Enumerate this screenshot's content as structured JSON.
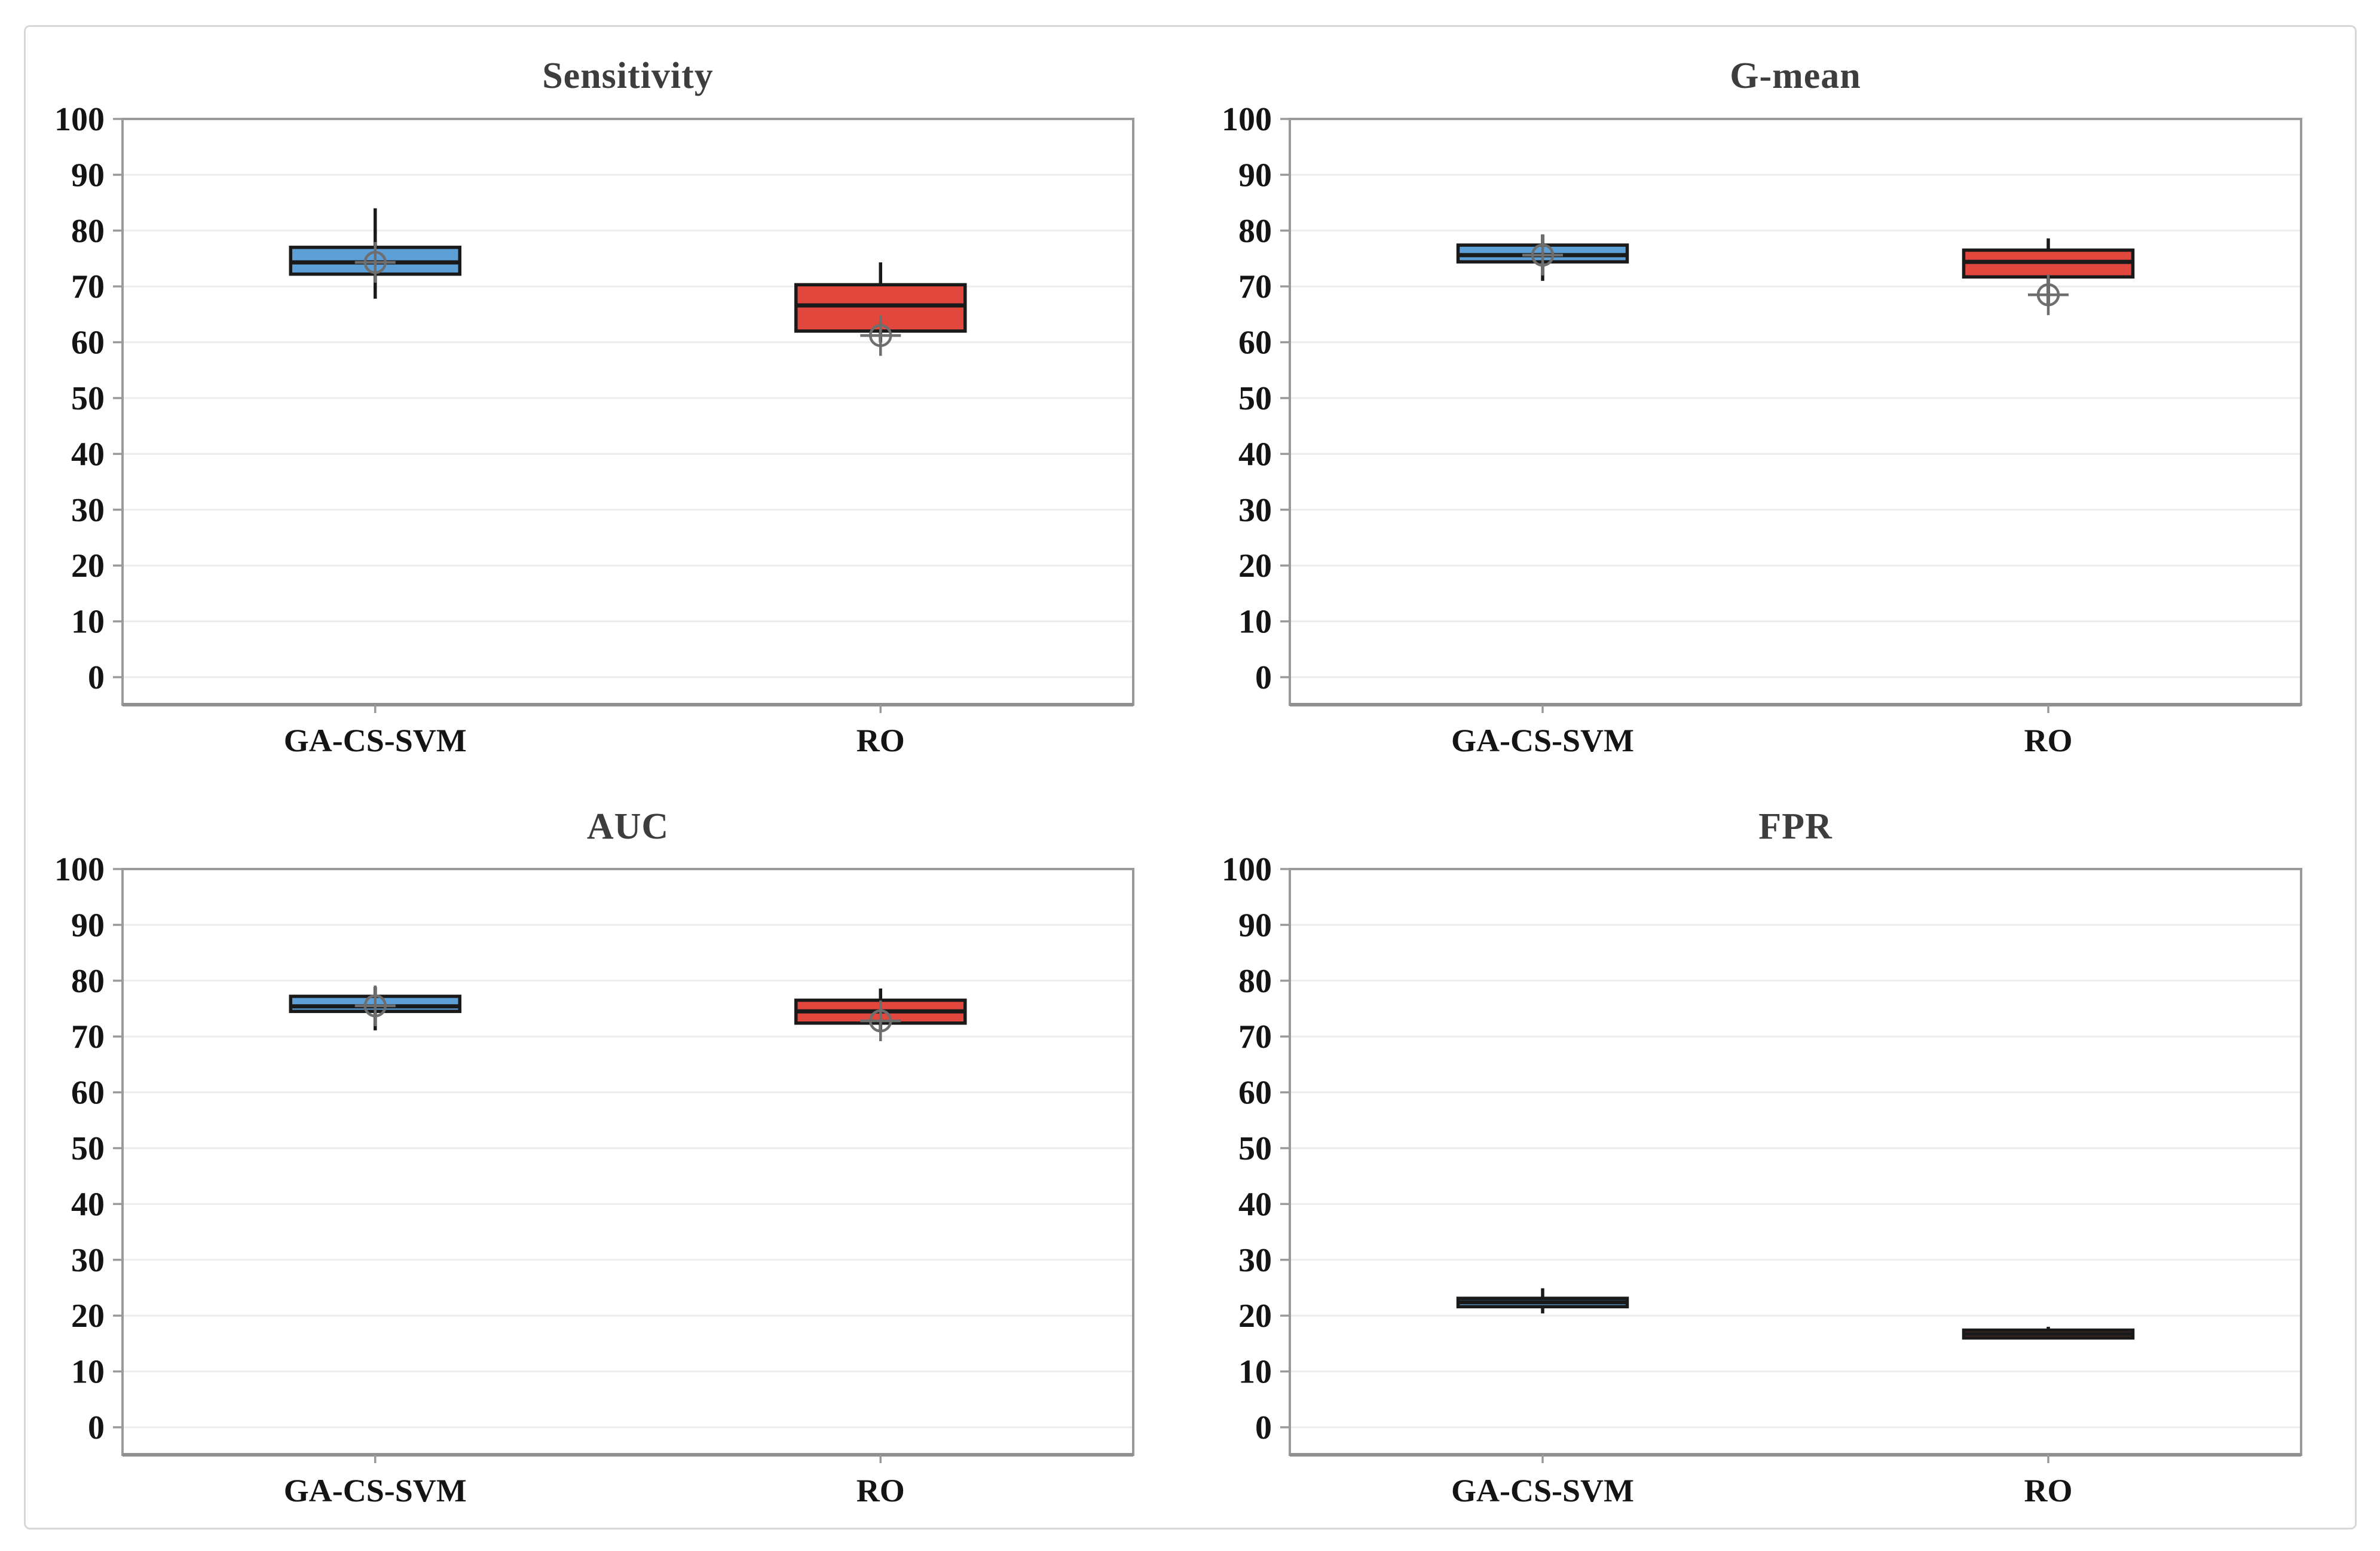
{
  "figure": {
    "background_color": "#ffffff",
    "frame_border_color": "#d8d8d8"
  },
  "axis": {
    "ymin": 0,
    "ymax": 100,
    "tick_step": 10,
    "grid": true,
    "gridline_color": "#ececec",
    "spine_color": "#9a9a9a",
    "tick_label_color": "#141414"
  },
  "categories": [
    "GA-CS-SVM",
    "RO"
  ],
  "colors": {
    "ga_cs_svm_box": "#5d9fd7",
    "ro_box": "#e2473e",
    "box_border": "#1a1a1a",
    "mean_marker": "#6e6e6e",
    "title_text": "#3d3d3d"
  },
  "chart_data": [
    {
      "type": "box",
      "title": "Sensitivity",
      "categories": [
        "GA-CS-SVM",
        "RO"
      ],
      "ylim": [
        0,
        100
      ],
      "grid": true,
      "series": [
        {
          "name": "GA-CS-SVM",
          "color": "#5d9fd7",
          "whisker_low": 67.8,
          "q1": 72.2,
          "median": 74.3,
          "q3": 77.0,
          "whisker_high": 84.0,
          "mean": 74.3,
          "mean_visible": true
        },
        {
          "name": "RO",
          "color": "#e2473e",
          "whisker_low": 60.0,
          "q1": 62.0,
          "median": 66.6,
          "q3": 70.3,
          "whisker_high": 74.3,
          "mean": 61.2,
          "mean_visible": true
        }
      ]
    },
    {
      "type": "box",
      "title": "G-mean",
      "categories": [
        "GA-CS-SVM",
        "RO"
      ],
      "ylim": [
        0,
        100
      ],
      "grid": true,
      "series": [
        {
          "name": "GA-CS-SVM",
          "color": "#5d9fd7",
          "whisker_low": 71.0,
          "q1": 74.4,
          "median": 75.6,
          "q3": 77.4,
          "whisker_high": 79.3,
          "mean": 75.6,
          "mean_visible": true
        },
        {
          "name": "RO",
          "color": "#e2473e",
          "whisker_low": 66.6,
          "q1": 71.7,
          "median": 74.4,
          "q3": 76.5,
          "whisker_high": 78.6,
          "mean": 68.5,
          "mean_visible": true
        }
      ]
    },
    {
      "type": "box",
      "title": "AUC",
      "categories": [
        "GA-CS-SVM",
        "RO"
      ],
      "ylim": [
        0,
        100
      ],
      "grid": true,
      "series": [
        {
          "name": "GA-CS-SVM",
          "color": "#5d9fd7",
          "whisker_low": 71.1,
          "q1": 74.5,
          "median": 75.4,
          "q3": 77.2,
          "whisker_high": 78.9,
          "mean": 75.5,
          "mean_visible": true
        },
        {
          "name": "RO",
          "color": "#e2473e",
          "whisker_low": 71.1,
          "q1": 72.4,
          "median": 74.5,
          "q3": 76.5,
          "whisker_high": 78.6,
          "mean": 72.8,
          "mean_visible": true
        }
      ]
    },
    {
      "type": "box",
      "title": "FPR",
      "categories": [
        "GA-CS-SVM",
        "RO"
      ],
      "ylim": [
        0,
        100
      ],
      "grid": true,
      "series": [
        {
          "name": "GA-CS-SVM",
          "color": "#5d9fd7",
          "whisker_low": 20.4,
          "q1": 21.6,
          "median": 22.4,
          "q3": 23.1,
          "whisker_high": 24.9,
          "mean": 22.4,
          "mean_visible": false
        },
        {
          "name": "RO",
          "color": "#e2473e",
          "whisker_low": 16.0,
          "q1": 16.0,
          "median": 16.7,
          "q3": 17.4,
          "whisker_high": 18.0,
          "mean": 16.8,
          "mean_visible": false
        }
      ]
    }
  ]
}
